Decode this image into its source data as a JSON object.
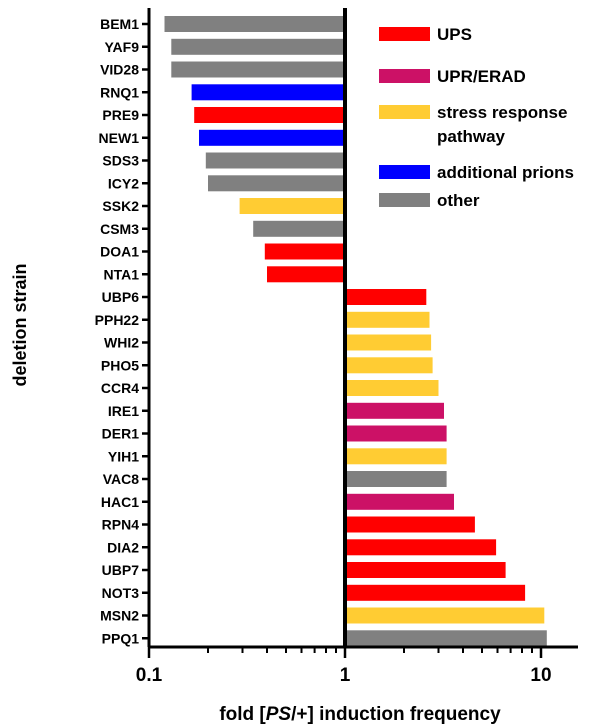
{
  "chart_data": {
    "type": "bar",
    "orientation": "horizontal",
    "xscale": "log",
    "xlim": [
      0.1,
      15
    ],
    "xticks": [
      0.1,
      1,
      10
    ],
    "xtick_labels": [
      "0.1",
      "1",
      "10"
    ],
    "xlabel_parts": [
      "fold [",
      "PS",
      "/+] induction frequency"
    ],
    "ylabel": "deletion strain",
    "baseline": 1,
    "grid": false,
    "legend_position": "top-right",
    "categories": [
      {
        "key": "UPS",
        "label": "UPS",
        "color": "#ff0000"
      },
      {
        "key": "UPR",
        "label": "UPR/ERAD",
        "color": "#cc1166"
      },
      {
        "key": "SRP",
        "label": "stress response",
        "label2": "pathway",
        "color": "#ffcc33"
      },
      {
        "key": "PRI",
        "label": "additional prions",
        "color": "#0000ff"
      },
      {
        "key": "OTH",
        "label": "other",
        "color": "#808080"
      }
    ],
    "bars": [
      {
        "strain": "BEM1",
        "value": 0.12,
        "category": "OTH"
      },
      {
        "strain": "YAF9",
        "value": 0.13,
        "category": "OTH"
      },
      {
        "strain": "VID28",
        "value": 0.13,
        "category": "OTH"
      },
      {
        "strain": "RNQ1",
        "value": 0.165,
        "category": "PRI"
      },
      {
        "strain": "PRE9",
        "value": 0.17,
        "category": "UPS"
      },
      {
        "strain": "NEW1",
        "value": 0.18,
        "category": "PRI"
      },
      {
        "strain": "SDS3",
        "value": 0.195,
        "category": "OTH"
      },
      {
        "strain": "ICY2",
        "value": 0.2,
        "category": "OTH"
      },
      {
        "strain": "SSK2",
        "value": 0.29,
        "category": "SRP"
      },
      {
        "strain": "CSM3",
        "value": 0.34,
        "category": "OTH"
      },
      {
        "strain": "DOA1",
        "value": 0.39,
        "category": "UPS"
      },
      {
        "strain": "NTA1",
        "value": 0.4,
        "category": "UPS"
      },
      {
        "strain": "UBP6",
        "value": 2.6,
        "category": "UPS"
      },
      {
        "strain": "PPH22",
        "value": 2.7,
        "category": "SRP"
      },
      {
        "strain": "WHI2",
        "value": 2.75,
        "category": "SRP"
      },
      {
        "strain": "PHO5",
        "value": 2.8,
        "category": "SRP"
      },
      {
        "strain": "CCR4",
        "value": 3.0,
        "category": "SRP"
      },
      {
        "strain": "IRE1",
        "value": 3.2,
        "category": "UPR"
      },
      {
        "strain": "DER1",
        "value": 3.3,
        "category": "UPR"
      },
      {
        "strain": "YIH1",
        "value": 3.3,
        "category": "SRP"
      },
      {
        "strain": "VAC8",
        "value": 3.3,
        "category": "OTH"
      },
      {
        "strain": "HAC1",
        "value": 3.6,
        "category": "UPR"
      },
      {
        "strain": "RPN4",
        "value": 4.6,
        "category": "UPS"
      },
      {
        "strain": "DIA2",
        "value": 5.9,
        "category": "UPS"
      },
      {
        "strain": "UBP7",
        "value": 6.6,
        "category": "UPS"
      },
      {
        "strain": "NOT3",
        "value": 8.3,
        "category": "UPS"
      },
      {
        "strain": "MSN2",
        "value": 10.4,
        "category": "SRP"
      },
      {
        "strain": "PPQ1",
        "value": 10.7,
        "category": "OTH"
      }
    ]
  }
}
